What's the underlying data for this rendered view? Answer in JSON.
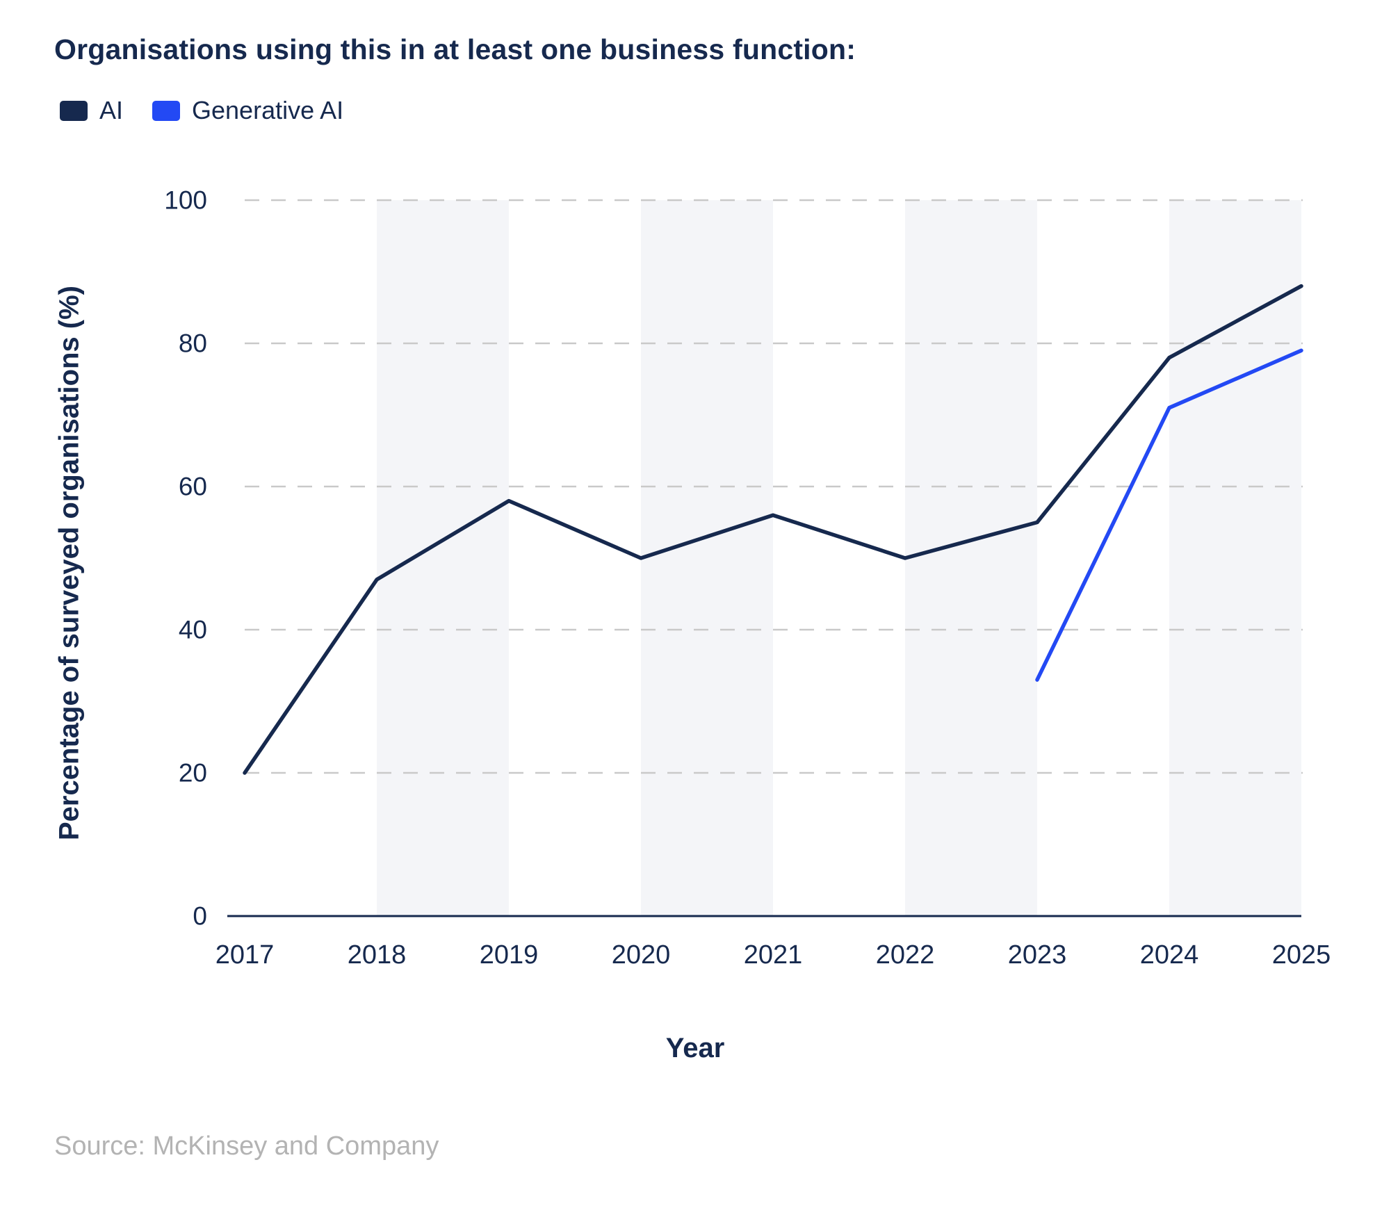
{
  "title": "Organisations using this in at least one business function:",
  "legend": {
    "items": [
      {
        "label": "AI",
        "color": "#16294E"
      },
      {
        "label": "Generative AI",
        "color": "#2349F4"
      }
    ]
  },
  "source": "Source: McKinsey and Company",
  "chart_data": {
    "type": "line",
    "title": "Organisations using this in at least one business function:",
    "x": [
      2017,
      2018,
      2019,
      2020,
      2021,
      2022,
      2023,
      2024,
      2025
    ],
    "series": [
      {
        "name": "AI",
        "color": "#16294E",
        "x": [
          2017,
          2018,
          2019,
          2020,
          2021,
          2022,
          2023,
          2024,
          2025
        ],
        "values": [
          20,
          47,
          58,
          50,
          56,
          50,
          55,
          78,
          88
        ]
      },
      {
        "name": "Generative AI",
        "color": "#2349F4",
        "x": [
          2023,
          2024,
          2025
        ],
        "values": [
          33,
          71,
          79
        ]
      }
    ],
    "xlabel": "Year",
    "ylabel": "Percentage of surveyed organisations (%)",
    "ylim": [
      0,
      100
    ],
    "yticks": [
      0,
      20,
      40,
      60,
      80,
      100
    ],
    "grid": "horizontal-dashed",
    "grid_color": "#C9C9C9",
    "axis_color": "#16294E",
    "tick_label_color": "#16294E",
    "legend_position": "top-left",
    "background_bands": [
      [
        2018,
        2019
      ],
      [
        2020,
        2021
      ],
      [
        2022,
        2023
      ],
      [
        2024,
        2025
      ]
    ],
    "band_color": "#F4F5F8"
  }
}
